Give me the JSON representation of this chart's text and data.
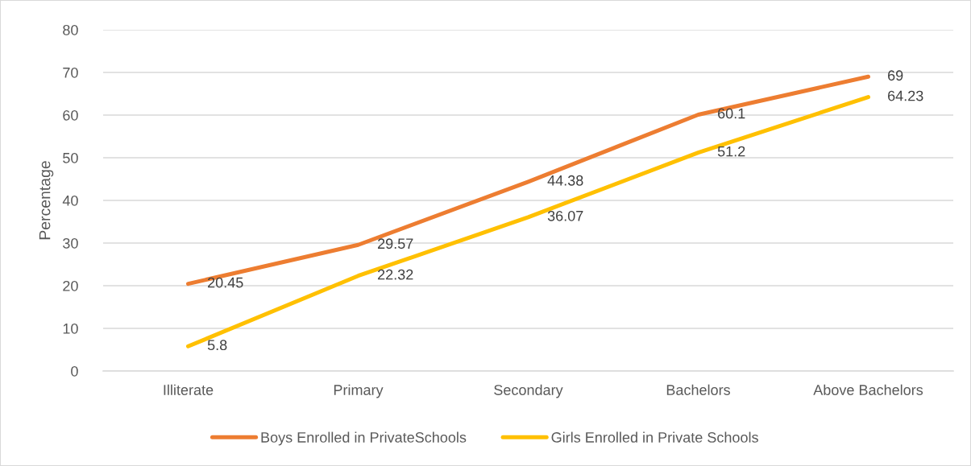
{
  "chart_data": {
    "type": "line",
    "ylabel": "Percentage",
    "categories": [
      "Illiterate",
      "Primary",
      "Secondary",
      "Bachelors",
      "Above Bachelors"
    ],
    "series": [
      {
        "name": "Boys Enrolled in PrivateSchools",
        "color": "#ed7d31",
        "values": [
          20.45,
          29.57,
          44.38,
          60.1,
          69
        ]
      },
      {
        "name": "Girls Enrolled in Private Schools",
        "color": "#ffc000",
        "values": [
          5.8,
          22.32,
          36.07,
          51.2,
          64.23
        ]
      }
    ],
    "ylim": [
      0,
      80
    ],
    "yticks": [
      0,
      10,
      20,
      30,
      40,
      50,
      60,
      70,
      80
    ],
    "grid": "y",
    "legend": "bottom",
    "data_labels": true,
    "line_style": "solid"
  }
}
